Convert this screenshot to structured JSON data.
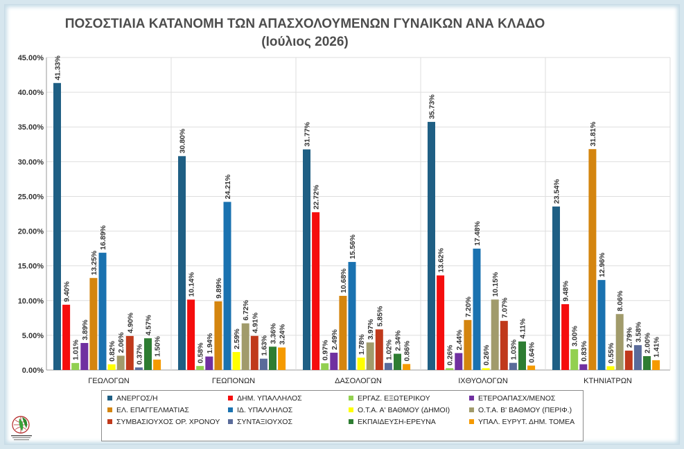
{
  "title_line1": "ΠΟΣΟΣΤΙΑΙΑ ΚΑΤΑΝΟΜΗ ΤΩΝ ΑΠΑΣΧΟΛΟΥΜΕΝΩΝ ΓΥΝΑΙΚΩΝ ΑΝΑ ΚΛΑΔΟ",
  "title_line2": "(Ιούλιος 2026)",
  "logo_text": "ΓΕΩΤΕΧΝΙΚΟ ΕΠΙΜΕΛΗΤΗΡΙΟ ΕΛΛΑΔΑΣ",
  "chart_data": {
    "type": "bar",
    "title": "ΠΟΣΟΣΤΙΑΙΑ ΚΑΤΑΝΟΜΗ ΤΩΝ ΑΠΑΣΧΟΛΟΥΜΕΝΩΝ ΓΥΝΑΙΚΩΝ ΑΝΑ ΚΛΑΔΟ (Ιούλιος 2026)",
    "categories": [
      "ΓΕΩΛΟΓΩΝ",
      "ΓΕΩΠΟΝΩΝ",
      "ΔΑΣΟΛΟΓΩΝ",
      "ΙΧΘΥΟΛΟΓΩΝ",
      "ΚΤΗΝΙΑΤΡΩΝ"
    ],
    "ylim": [
      0,
      45
    ],
    "yticks": [
      "0.00%",
      "5.00%",
      "10.00%",
      "15.00%",
      "20.00%",
      "25.00%",
      "30.00%",
      "35.00%",
      "40.00%",
      "45.00%"
    ],
    "grid": true,
    "legend_position": "bottom",
    "series": [
      {
        "name": "ΑΝΕΡΓΟΣ/Η",
        "color": "#1f5f84",
        "values": [
          41.33,
          30.8,
          31.77,
          35.73,
          23.54
        ],
        "labels": [
          "41.33%",
          "30.80%",
          "31.77%",
          "35.73%",
          "23.54%"
        ]
      },
      {
        "name": "ΔΗΜ. ΥΠΑΛΛΗΛΟΣ",
        "color": "#f50d0d",
        "values": [
          9.4,
          10.14,
          22.72,
          13.62,
          9.48
        ],
        "labels": [
          "9.40%",
          "10.14%",
          "22.72%",
          "13.62%",
          "9.48%"
        ]
      },
      {
        "name": "ΕΡΓΑΖ. ΕΞΩΤΕΡΙΚΟΥ",
        "color": "#92d050",
        "values": [
          1.01,
          0.58,
          0.97,
          0.26,
          3.0
        ],
        "labels": [
          "1.01%",
          "0.58%",
          "0.97%",
          "0.26%",
          "3.00%"
        ]
      },
      {
        "name": "ΕΤΕΡΟΑΠΑΣΧ/ΜΕΝΟΣ",
        "color": "#7030a0",
        "values": [
          3.89,
          1.94,
          2.49,
          2.44,
          0.83
        ],
        "labels": [
          "3.89%",
          "1.94%",
          "2.49%",
          "2.44%",
          "0.83%"
        ]
      },
      {
        "name": "ΕΛ. ΕΠΑΓΓΕΛΜΑΤΙΑΣ",
        "color": "#d4850f",
        "values": [
          13.25,
          9.89,
          10.68,
          7.2,
          31.81
        ],
        "labels": [
          "13.25%",
          "9.89%",
          "10.68%",
          "7.20%",
          "31.81%"
        ]
      },
      {
        "name": "ΙΔ. ΥΠΑΛΛΗΛΟΣ",
        "color": "#1a72b0",
        "values": [
          16.89,
          24.21,
          15.56,
          17.48,
          12.96
        ],
        "labels": [
          "16.89%",
          "24.21%",
          "15.56%",
          "17.48%",
          "12.96%"
        ]
      },
      {
        "name": "Ο.Τ.Α. Α' ΒΑΘΜΟΥ (ΔΗΜΟΙ)",
        "color": "#ffff00",
        "values": [
          0.82,
          2.59,
          1.78,
          0.26,
          0.55
        ],
        "labels": [
          "0.82%",
          "2.59%",
          "1.78%",
          "0.26%",
          "0.55%"
        ]
      },
      {
        "name": "Ο.Τ.Α. Β' ΒΑΘΜΟΥ (ΠΕΡΙΦ.)",
        "color": "#a19b6b",
        "values": [
          2.06,
          6.72,
          3.97,
          10.15,
          8.06
        ],
        "labels": [
          "2.06%",
          "6.72%",
          "3.97%",
          "10.15%",
          "8.06%"
        ]
      },
      {
        "name": "ΣΥΜΒΑΣΙΟΥΧΟΣ ΟΡ. ΧΡΟΝΟΥ",
        "color": "#c0391b",
        "values": [
          4.9,
          4.91,
          5.85,
          7.07,
          2.79
        ],
        "labels": [
          "4.90%",
          "4.91%",
          "5.85%",
          "7.07%",
          "2.79%"
        ]
      },
      {
        "name": "ΣΥΝΤΑΞΙΟΥΧΟΣ",
        "color": "#5a6b9a",
        "values": [
          0.37,
          1.63,
          1.02,
          1.03,
          3.58
        ],
        "labels": [
          "0.37%",
          "1.63%",
          "1.02%",
          "1.03%",
          "3.58%"
        ]
      },
      {
        "name": "ΕΚΠΑΙΔΕΥΣΗ-ΕΡΕΥΝΑ",
        "color": "#2e7d32",
        "values": [
          4.57,
          3.36,
          2.34,
          4.11,
          2.0
        ],
        "labels": [
          "4.57%",
          "3.36%",
          "2.34%",
          "4.11%",
          "2.00%"
        ]
      },
      {
        "name": "ΥΠΑΛ. ΕΥΡΥΤ. ΔΗΜ. ΤΟΜΕΑ",
        "color": "#f59a00",
        "values": [
          1.5,
          3.24,
          0.86,
          0.64,
          1.41
        ],
        "labels": [
          "1.50%",
          "3.24%",
          "0.86%",
          "0.64%",
          "1.41%"
        ]
      }
    ]
  }
}
